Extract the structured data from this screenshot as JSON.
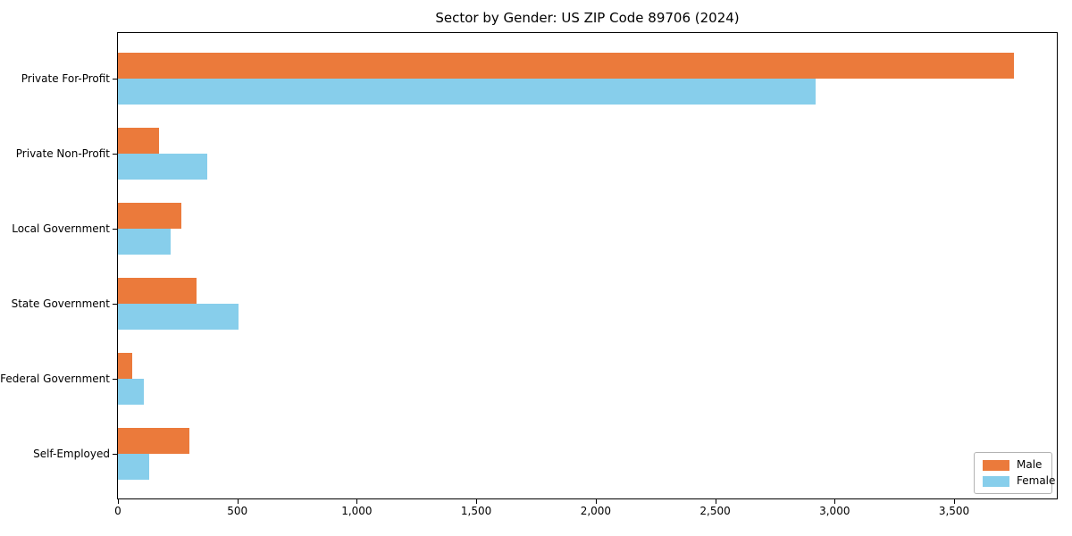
{
  "chart_data": {
    "type": "bar",
    "orientation": "horizontal",
    "title": "Sector by Gender: US ZIP Code 89706 (2024)",
    "categories": [
      "Private For-Profit",
      "Private Non-Profit",
      "Local Government",
      "State Government",
      "Federal Government",
      "Self-Employed"
    ],
    "series": [
      {
        "name": "Male",
        "color": "#EB7A3B",
        "values": [
          3750,
          170,
          265,
          330,
          60,
          300
        ]
      },
      {
        "name": "Female",
        "color": "#87CEEB",
        "values": [
          2920,
          375,
          220,
          505,
          110,
          130
        ]
      }
    ],
    "xlabel": "",
    "ylabel": "",
    "xlim": [
      0,
      3930
    ],
    "xticks": {
      "values": [
        0,
        500,
        1000,
        1500,
        2000,
        2500,
        3000,
        3500
      ],
      "labels": [
        "0",
        "500",
        "1,000",
        "1,500",
        "2,000",
        "2,500",
        "3,000",
        "3,500"
      ]
    },
    "grid": false,
    "legend_position": "lower right"
  }
}
